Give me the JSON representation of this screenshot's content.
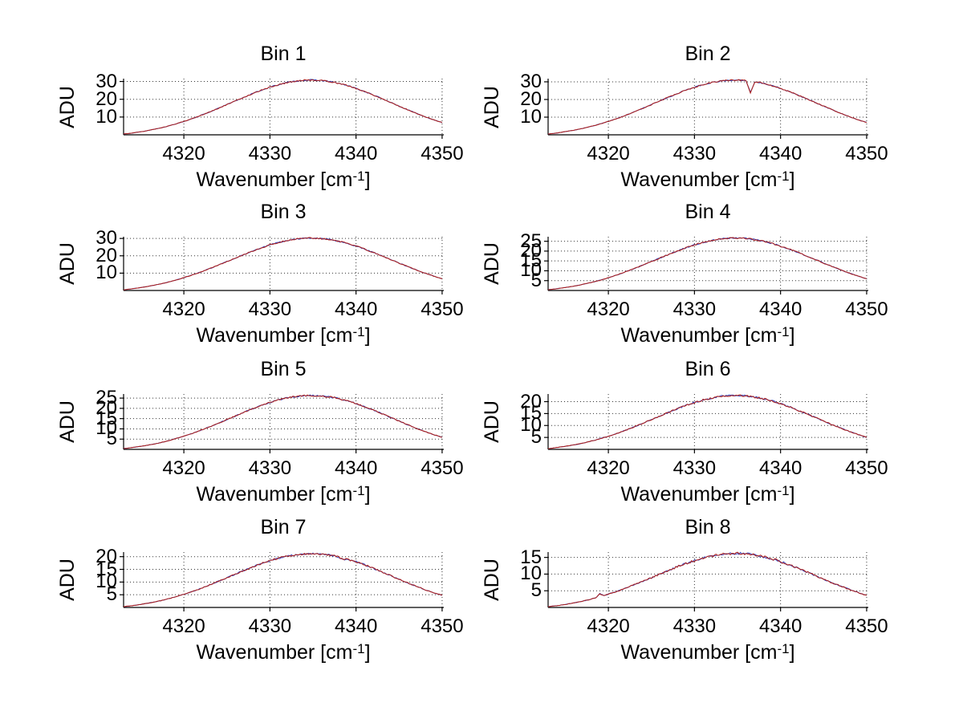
{
  "figure": {
    "background": "#ffffff",
    "line_color": "#aa2222",
    "underlay_line_color": "#3344bb",
    "grid_color": "#333333",
    "axis_color": "#000000",
    "text_color": "#000000",
    "grid_style": "dotted",
    "layout": "4 rows x 2 columns of subplots"
  },
  "labels": {
    "ylabel": "ADU",
    "xlabel_base": "Wavenumber [cm",
    "xlabel_sup": "-1",
    "xlabel_end": "]"
  },
  "chart_data": [
    {
      "type": "line",
      "title": "Bin 1",
      "xlabel": "Wavenumber [cm^-1]",
      "ylabel": "ADU",
      "legend": null,
      "grid": "on",
      "xlim": [
        4313,
        4350.1
      ],
      "ylim": [
        0,
        31.6
      ],
      "xticks": [
        4320,
        4330,
        4340,
        4350
      ],
      "yticks": [
        10,
        20,
        30
      ],
      "x_start": 4313,
      "x_step": 0.5,
      "values": [
        0.5,
        0.7,
        1.0,
        1.4,
        1.7,
        2.1,
        2.6,
        3.1,
        3.6,
        4.1,
        4.7,
        5.4,
        6.0,
        6.8,
        7.5,
        8.3,
        9.2,
        10.0,
        11.0,
        11.9,
        12.9,
        13.9,
        14.9,
        15.9,
        17.0,
        18.0,
        19.1,
        20.1,
        21.2,
        22.2,
        23.2,
        24.2,
        25.1,
        25.9,
        26.8,
        27.5,
        28.2,
        28.8,
        29.4,
        29.8,
        30.2,
        30.5,
        30.7,
        30.8,
        30.8,
        30.7,
        30.5,
        30.3,
        29.9,
        29.5,
        28.9,
        28.3,
        27.7,
        26.9,
        26.1,
        25.2,
        24.3,
        23.4,
        22.4,
        21.4,
        20.4,
        19.3,
        18.3,
        17.2,
        16.1,
        15.1,
        14.1,
        13.1,
        12.1,
        11.1,
        10.2,
        9.3,
        8.5,
        7.7,
        6.9
      ]
    },
    {
      "type": "line",
      "title": "Bin 2",
      "xlabel": "Wavenumber [cm^-1]",
      "ylabel": "ADU",
      "legend": null,
      "grid": "on",
      "annotation": "narrow downward spike near 4336.5",
      "xlim": [
        4313,
        4350.1
      ],
      "ylim": [
        0,
        31.8
      ],
      "xticks": [
        4320,
        4330,
        4340,
        4350
      ],
      "yticks": [
        10,
        20,
        30
      ],
      "x_start": 4313,
      "x_step": 0.5,
      "values": [
        0.5,
        0.7,
        1.0,
        1.4,
        1.8,
        2.2,
        2.6,
        3.1,
        3.6,
        4.2,
        4.8,
        5.4,
        6.1,
        6.8,
        7.6,
        8.4,
        9.2,
        10.1,
        11.0,
        12.0,
        13.0,
        14.0,
        15.0,
        16.0,
        17.1,
        18.2,
        19.2,
        20.3,
        21.3,
        22.3,
        23.3,
        24.3,
        25.2,
        26.1,
        26.9,
        27.7,
        28.4,
        29.0,
        29.6,
        30.0,
        30.4,
        30.7,
        30.9,
        31.0,
        31.0,
        30.9,
        30.7,
        23.9,
        29.6,
        29.7,
        29.1,
        28.5,
        27.8,
        27.1,
        26.3,
        25.4,
        24.5,
        23.5,
        22.5,
        21.5,
        20.5,
        19.4,
        18.4,
        17.3,
        16.3,
        15.2,
        14.2,
        13.2,
        12.2,
        11.2,
        10.3,
        9.4,
        8.5,
        7.7,
        7.0
      ]
    },
    {
      "type": "line",
      "title": "Bin 3",
      "xlabel": "Wavenumber [cm^-1]",
      "ylabel": "ADU",
      "legend": null,
      "grid": "on",
      "xlim": [
        4313,
        4350.1
      ],
      "ylim": [
        0,
        31.0
      ],
      "xticks": [
        4320,
        4330,
        4340,
        4350
      ],
      "yticks": [
        10,
        20,
        30
      ],
      "x_start": 4313,
      "x_step": 0.5,
      "values": [
        0.4,
        0.7,
        1.0,
        1.3,
        1.7,
        2.1,
        2.5,
        3.0,
        3.5,
        4.0,
        4.6,
        5.3,
        5.9,
        6.6,
        7.4,
        8.2,
        9.0,
        9.8,
        10.7,
        11.7,
        12.6,
        13.6,
        14.6,
        15.6,
        16.7,
        17.7,
        18.7,
        19.8,
        20.8,
        21.8,
        22.7,
        23.7,
        24.6,
        25.4,
        26.2,
        27.0,
        27.7,
        28.3,
        28.8,
        29.2,
        29.6,
        29.9,
        30.1,
        30.2,
        30.2,
        30.1,
        29.9,
        29.7,
        29.3,
        28.9,
        28.4,
        27.8,
        27.1,
        26.4,
        25.6,
        24.8,
        23.9,
        22.9,
        22.0,
        21.0,
        20.0,
        18.9,
        17.9,
        16.9,
        15.8,
        14.8,
        13.8,
        12.8,
        11.9,
        10.9,
        10.0,
        9.2,
        8.3,
        7.5,
        6.8
      ]
    },
    {
      "type": "line",
      "title": "Bin 4",
      "xlabel": "Wavenumber [cm^-1]",
      "ylabel": "ADU",
      "legend": null,
      "grid": "on",
      "xlim": [
        4313,
        4350.1
      ],
      "ylim": [
        0,
        27.3
      ],
      "xticks": [
        4320,
        4330,
        4340,
        4350
      ],
      "yticks": [
        5,
        10,
        15,
        20,
        25
      ],
      "x_start": 4313,
      "x_step": 0.5,
      "values": [
        0.4,
        0.6,
        0.9,
        1.2,
        1.5,
        1.9,
        2.2,
        2.6,
        3.1,
        3.6,
        4.1,
        4.6,
        5.2,
        5.8,
        6.5,
        7.2,
        7.9,
        8.7,
        9.5,
        10.3,
        11.1,
        12.0,
        12.9,
        13.8,
        14.7,
        15.6,
        16.5,
        17.4,
        18.3,
        19.2,
        20.0,
        20.9,
        21.7,
        22.4,
        23.1,
        23.8,
        24.4,
        24.9,
        25.4,
        25.8,
        26.1,
        26.3,
        26.5,
        26.6,
        26.6,
        26.5,
        26.4,
        26.1,
        25.8,
        25.4,
        25.0,
        24.5,
        23.9,
        23.2,
        22.5,
        21.8,
        21.0,
        20.2,
        19.3,
        18.5,
        17.6,
        16.7,
        15.8,
        14.9,
        13.9,
        13.0,
        12.2,
        11.3,
        10.4,
        9.6,
        8.8,
        8.1,
        7.3,
        6.6,
        6.0
      ]
    },
    {
      "type": "line",
      "title": "Bin 5",
      "xlabel": "Wavenumber [cm^-1]",
      "ylabel": "ADU",
      "legend": null,
      "grid": "on",
      "xlim": [
        4313,
        4350.1
      ],
      "ylim": [
        0,
        27.0
      ],
      "xticks": [
        4320,
        4330,
        4340,
        4350
      ],
      "yticks": [
        5,
        10,
        15,
        20,
        25
      ],
      "x_start": 4313,
      "x_step": 0.5,
      "values": [
        0.4,
        0.6,
        0.9,
        1.2,
        1.5,
        1.8,
        2.2,
        2.6,
        3.0,
        3.5,
        4.0,
        4.6,
        5.2,
        5.8,
        6.4,
        7.1,
        7.8,
        8.6,
        9.4,
        10.2,
        11.0,
        11.8,
        12.7,
        13.6,
        14.5,
        15.4,
        16.3,
        17.2,
        18.1,
        19.0,
        19.8,
        20.6,
        21.4,
        22.2,
        22.8,
        23.5,
        24.1,
        24.6,
        25.1,
        25.5,
        25.8,
        26.0,
        26.2,
        26.3,
        26.3,
        26.2,
        26.1,
        25.8,
        25.5,
        25.2,
        24.7,
        24.2,
        23.6,
        23.0,
        22.3,
        21.6,
        20.8,
        20.0,
        19.1,
        18.3,
        17.4,
        16.5,
        15.6,
        14.7,
        13.8,
        12.9,
        12.0,
        11.2,
        10.3,
        9.5,
        8.7,
        8.0,
        7.2,
        6.6,
        5.9
      ]
    },
    {
      "type": "line",
      "title": "Bin 6",
      "xlabel": "Wavenumber [cm^-1]",
      "ylabel": "ADU",
      "legend": null,
      "grid": "on",
      "xlim": [
        4313,
        4350.1
      ],
      "ylim": [
        0,
        23.2
      ],
      "xticks": [
        4320,
        4330,
        4340,
        4350
      ],
      "yticks": [
        5,
        10,
        15,
        20
      ],
      "x_start": 4313,
      "x_step": 0.5,
      "values": [
        0.3,
        0.5,
        0.8,
        1.0,
        1.3,
        1.6,
        1.9,
        2.2,
        2.6,
        3.0,
        3.5,
        3.9,
        4.4,
        5.0,
        5.5,
        6.1,
        6.7,
        7.4,
        8.0,
        8.7,
        9.4,
        10.2,
        10.9,
        11.7,
        12.5,
        13.2,
        14.0,
        14.8,
        15.5,
        16.3,
        17.0,
        17.7,
        18.4,
        19.0,
        19.6,
        20.2,
        20.7,
        21.1,
        21.5,
        21.9,
        22.2,
        22.4,
        22.5,
        22.6,
        22.6,
        22.5,
        22.4,
        22.2,
        21.9,
        21.6,
        21.2,
        20.8,
        20.3,
        19.7,
        19.2,
        18.5,
        17.9,
        17.2,
        16.4,
        15.7,
        14.9,
        14.2,
        13.4,
        12.6,
        11.8,
        11.1,
        10.3,
        9.6,
        8.9,
        8.2,
        7.5,
        6.9,
        6.2,
        5.6,
        5.1
      ]
    },
    {
      "type": "line",
      "title": "Bin 7",
      "xlabel": "Wavenumber [cm^-1]",
      "ylabel": "ADU",
      "legend": null,
      "grid": "on",
      "annotation": "small dip near 4338.5",
      "xlim": [
        4313,
        4350.1
      ],
      "ylim": [
        0,
        21.8
      ],
      "xticks": [
        4320,
        4330,
        4340,
        4350
      ],
      "yticks": [
        5,
        10,
        15,
        20
      ],
      "x_start": 4313,
      "x_step": 0.5,
      "values": [
        0.3,
        0.5,
        0.7,
        0.9,
        1.2,
        1.5,
        1.8,
        2.1,
        2.5,
        2.8,
        3.3,
        3.7,
        4.2,
        4.7,
        5.2,
        5.7,
        6.3,
        6.9,
        7.5,
        8.2,
        8.9,
        9.6,
        10.3,
        11.0,
        11.7,
        12.4,
        13.1,
        13.9,
        14.6,
        15.3,
        16.0,
        16.6,
        17.3,
        17.9,
        18.4,
        18.9,
        19.4,
        19.8,
        20.2,
        20.5,
        20.8,
        21.0,
        21.1,
        21.2,
        21.2,
        21.1,
        21.0,
        20.8,
        20.6,
        20.3,
        19.9,
        18.9,
        19.0,
        18.5,
        18.0,
        17.4,
        16.8,
        16.1,
        15.4,
        14.7,
        14.0,
        13.3,
        12.6,
        11.8,
        11.1,
        10.4,
        9.7,
        9.0,
        8.3,
        7.7,
        7.0,
        6.4,
        5.8,
        5.3,
        4.8
      ]
    },
    {
      "type": "line",
      "title": "Bin 8",
      "xlabel": "Wavenumber [cm^-1]",
      "ylabel": "ADU",
      "legend": null,
      "grid": "on",
      "annotation": "small upward spike near 4319",
      "xlim": [
        4313,
        4350.1
      ],
      "ylim": [
        0,
        16.6
      ],
      "xticks": [
        4320,
        4330,
        4340,
        4350
      ],
      "yticks": [
        5,
        10,
        15
      ],
      "x_start": 4313,
      "x_step": 0.5,
      "values": [
        0.2,
        0.4,
        0.5,
        0.7,
        0.9,
        1.1,
        1.4,
        1.6,
        1.9,
        2.2,
        2.5,
        2.8,
        4.1,
        3.6,
        4.0,
        4.4,
        4.8,
        5.3,
        5.8,
        6.3,
        6.8,
        7.3,
        7.8,
        8.4,
        8.9,
        9.5,
        10.0,
        10.6,
        11.1,
        11.7,
        12.2,
        12.7,
        13.2,
        13.6,
        14.1,
        14.5,
        14.8,
        15.2,
        15.4,
        15.7,
        15.9,
        16.0,
        16.1,
        16.2,
        16.2,
        16.2,
        16.1,
        15.9,
        15.7,
        15.5,
        15.2,
        14.9,
        14.5,
        14.2,
        13.7,
        13.3,
        12.8,
        12.3,
        11.8,
        11.3,
        10.7,
        10.2,
        9.6,
        9.0,
        8.5,
        7.9,
        7.4,
        6.9,
        6.4,
        5.9,
        5.4,
        4.9,
        4.5,
        4.0,
        3.6
      ]
    }
  ]
}
